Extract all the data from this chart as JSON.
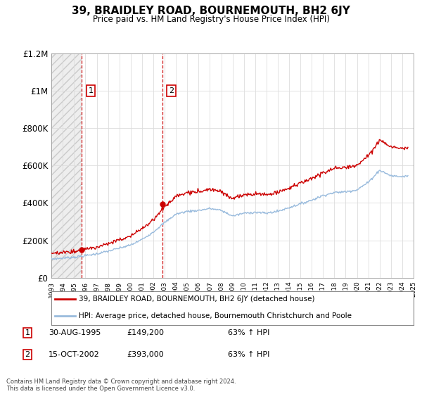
{
  "title": "39, BRAIDLEY ROAD, BOURNEMOUTH, BH2 6JY",
  "subtitle": "Price paid vs. HM Land Registry's House Price Index (HPI)",
  "title_fontsize": 11,
  "subtitle_fontsize": 8.5,
  "house_color": "#cc0000",
  "hpi_color": "#99bbdd",
  "grid_color": "#dddddd",
  "ylim": [
    0,
    1200000
  ],
  "yticks": [
    0,
    200000,
    400000,
    600000,
    800000,
    1000000,
    1200000
  ],
  "ytick_labels": [
    "£0",
    "£200K",
    "£400K",
    "£600K",
    "£800K",
    "£1M",
    "£1.2M"
  ],
  "sale1_year": 1995.66,
  "sale1_price": 149200,
  "sale1_label": "1",
  "sale1_date": "30-AUG-1995",
  "sale1_hpi_str": "63% ↑ HPI",
  "sale2_year": 2002.79,
  "sale2_price": 393000,
  "sale2_label": "2",
  "sale2_date": "15-OCT-2002",
  "sale2_hpi_str": "63% ↑ HPI",
  "legend_house": "39, BRAIDLEY ROAD, BOURNEMOUTH, BH2 6JY (detached house)",
  "legend_hpi": "HPI: Average price, detached house, Bournemouth Christchurch and Poole",
  "footnote": "Contains HM Land Registry data © Crown copyright and database right 2024.\nThis data is licensed under the Open Government Licence v3.0.",
  "xmin": 1993,
  "xmax": 2025
}
